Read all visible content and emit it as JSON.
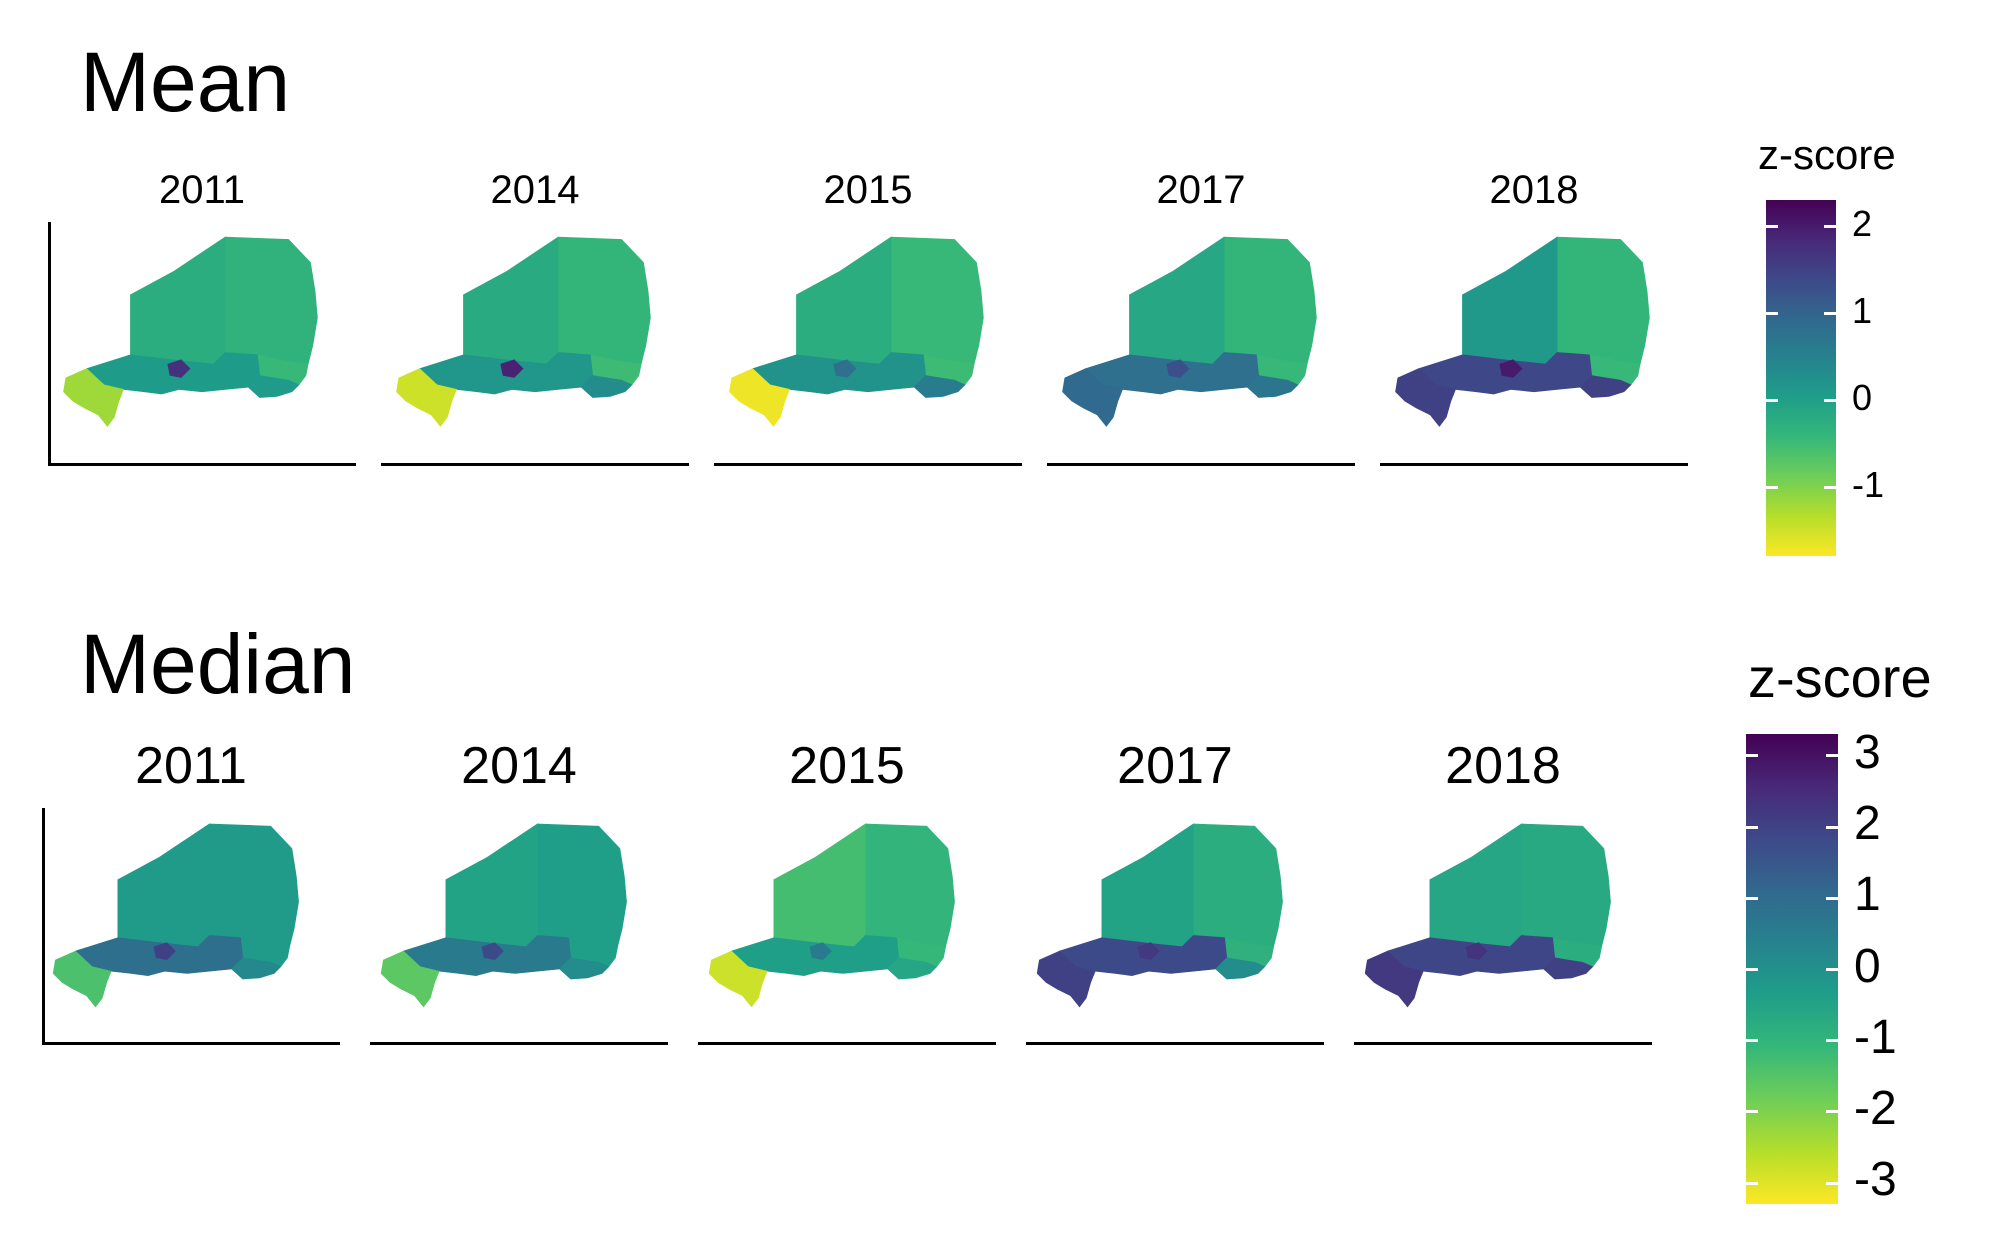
{
  "sections": [
    {
      "title": "Mean",
      "panels": [
        {
          "label": "2011",
          "south": 0.05,
          "east": 0.08,
          "southwest": -1.2,
          "northeast": -0.35,
          "ne_east": -0.45,
          "mid": -0.25,
          "hotspot": 1.7
        },
        {
          "label": "2014",
          "south": 0.15,
          "east": 0.3,
          "southwest": -1.5,
          "northeast": -0.4,
          "ne_east": -0.5,
          "mid": -0.2,
          "hotspot": 1.9
        },
        {
          "label": "2015",
          "south": 0.2,
          "east": 0.6,
          "southwest": -1.7,
          "northeast": -0.45,
          "ne_east": -0.5,
          "mid": -0.25,
          "hotspot": 0.8
        },
        {
          "label": "2017",
          "south": 0.8,
          "east": 0.7,
          "southwest": 0.9,
          "northeast": -0.4,
          "ne_east": -0.45,
          "mid": -0.15,
          "hotspot": 1.3
        },
        {
          "label": "2018",
          "south": 1.4,
          "east": 1.5,
          "southwest": 1.5,
          "northeast": -0.4,
          "ne_east": -0.45,
          "mid": 0.1,
          "hotspot": 2.0
        }
      ],
      "legend": {
        "title": "z-score",
        "min": -1.8,
        "max": 2.3,
        "ticks": [
          "2",
          "1",
          "0",
          "-1"
        ],
        "tick_values": [
          2,
          1,
          0,
          -1
        ]
      }
    },
    {
      "title": "Median",
      "panels": [
        {
          "label": "2011",
          "south": 0.9,
          "east": 0.2,
          "southwest": -1.4,
          "northeast": -0.3,
          "ne_east": -0.3,
          "mid": -0.3,
          "hotspot": 2.0
        },
        {
          "label": "2014",
          "south": 0.6,
          "east": 0.1,
          "southwest": -1.6,
          "northeast": -0.4,
          "ne_east": -0.4,
          "mid": -0.5,
          "hotspot": 1.8
        },
        {
          "label": "2015",
          "south": -0.4,
          "east": -0.6,
          "southwest": -2.8,
          "northeast": -1.0,
          "ne_east": -1.1,
          "mid": -1.3,
          "hotspot": 0.6
        },
        {
          "label": "2017",
          "south": 1.8,
          "east": 0.1,
          "southwest": 2.0,
          "northeast": -0.8,
          "ne_east": -0.9,
          "mid": -0.5,
          "hotspot": 2.2
        },
        {
          "label": "2018",
          "south": 1.9,
          "east": 2.0,
          "southwest": 2.2,
          "northeast": -0.7,
          "ne_east": -0.8,
          "mid": -0.6,
          "hotspot": 2.3
        }
      ],
      "legend": {
        "title": "z-score",
        "min": -3.3,
        "max": 3.3,
        "ticks": [
          "3",
          "2",
          "1",
          "0",
          "-1",
          "-2",
          "-3"
        ],
        "tick_values": [
          3,
          2,
          1,
          0,
          -1,
          -2,
          -3
        ]
      }
    }
  ],
  "colors": {
    "palette": [
      "#fde725",
      "#b5de2b",
      "#6ece58",
      "#35b779",
      "#1f9e89",
      "#26828e",
      "#31688e",
      "#3e4989",
      "#482878",
      "#440154"
    ],
    "map_outline": "none",
    "axis": "#000000"
  }
}
